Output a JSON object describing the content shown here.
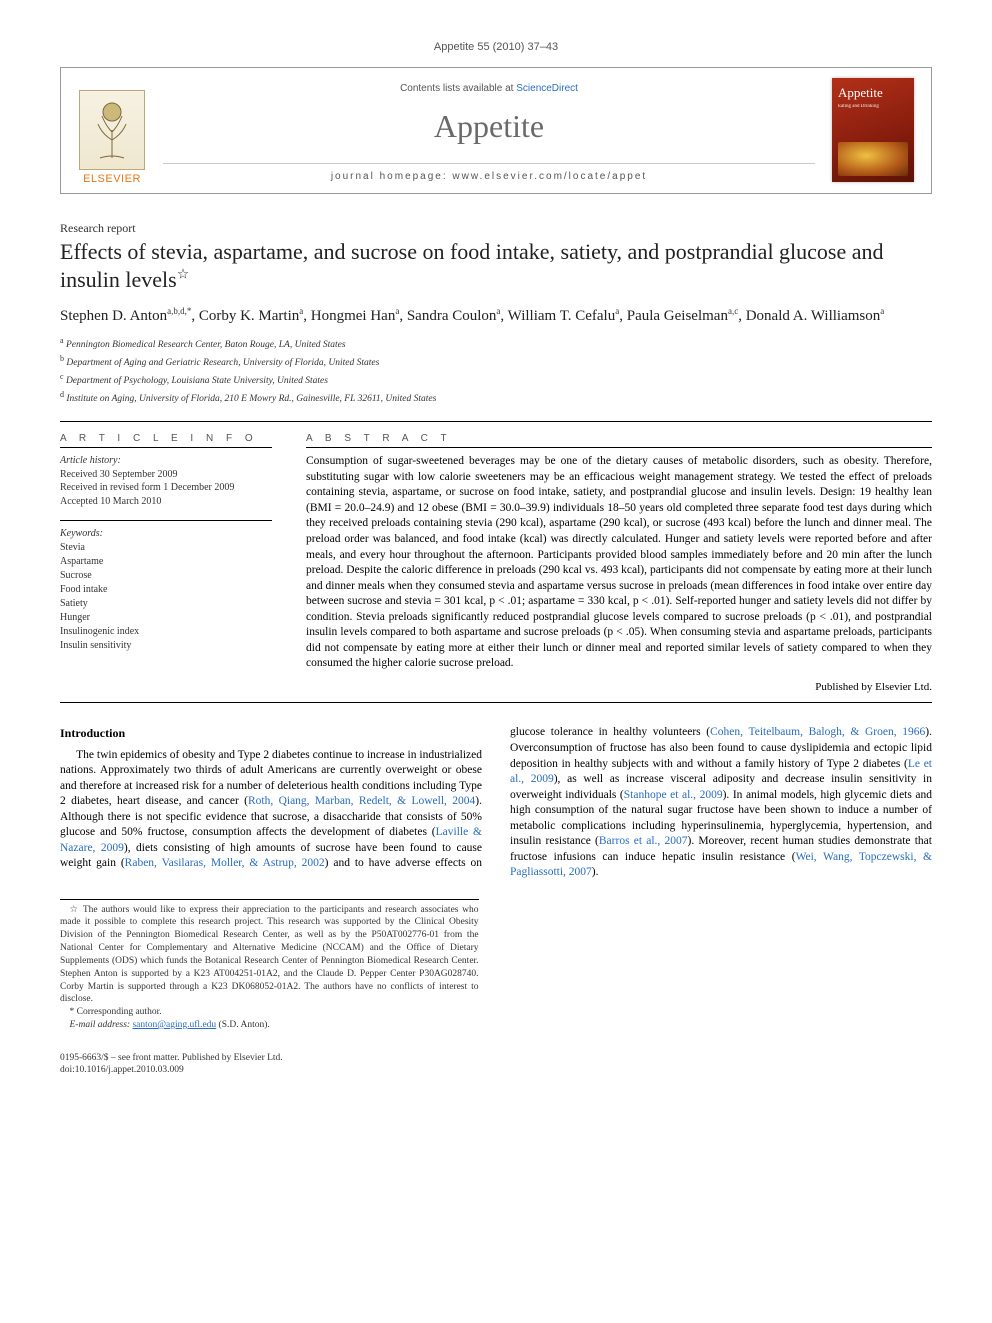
{
  "runningHead": "Appetite 55 (2010) 37–43",
  "masthead": {
    "contentsPrefix": "Contents lists available at ",
    "contentsLink": "ScienceDirect",
    "journal": "Appetite",
    "homepageLabel": "journal homepage: www.elsevier.com/locate/appet",
    "publisher": "ELSEVIER",
    "coverTitle": "Appetite",
    "coverSub": "Eating and Drinking"
  },
  "docType": "Research report",
  "title": "Effects of stevia, aspartame, and sucrose on food intake, satiety, and postprandial glucose and insulin levels",
  "titleNoteMark": "☆",
  "authors": [
    {
      "name": "Stephen D. Anton",
      "marks": "a,b,d,*"
    },
    {
      "name": "Corby K. Martin",
      "marks": "a"
    },
    {
      "name": "Hongmei Han",
      "marks": "a"
    },
    {
      "name": "Sandra Coulon",
      "marks": "a"
    },
    {
      "name": "William T. Cefalu",
      "marks": "a"
    },
    {
      "name": "Paula Geiselman",
      "marks": "a,c"
    },
    {
      "name": "Donald A. Williamson",
      "marks": "a"
    }
  ],
  "affiliations": [
    {
      "mark": "a",
      "text": "Pennington Biomedical Research Center, Baton Rouge, LA, United States"
    },
    {
      "mark": "b",
      "text": "Department of Aging and Geriatric Research, University of Florida, United States"
    },
    {
      "mark": "c",
      "text": "Department of Psychology, Louisiana State University, United States"
    },
    {
      "mark": "d",
      "text": "Institute on Aging, University of Florida, 210 E Mowry Rd., Gainesville, FL 32611, United States"
    }
  ],
  "articleInfo": {
    "heading": "A R T I C L E   I N F O",
    "historyLabel": "Article history:",
    "history": [
      "Received 30 September 2009",
      "Received in revised form 1 December 2009",
      "Accepted 10 March 2010"
    ],
    "keywordsLabel": "Keywords:",
    "keywords": [
      "Stevia",
      "Aspartame",
      "Sucrose",
      "Food intake",
      "Satiety",
      "Hunger",
      "Insulinogenic index",
      "Insulin sensitivity"
    ]
  },
  "abstract": {
    "heading": "A B S T R A C T",
    "text": "Consumption of sugar-sweetened beverages may be one of the dietary causes of metabolic disorders, such as obesity. Therefore, substituting sugar with low calorie sweeteners may be an efficacious weight management strategy. We tested the effect of preloads containing stevia, aspartame, or sucrose on food intake, satiety, and postprandial glucose and insulin levels. Design: 19 healthy lean (BMI = 20.0–24.9) and 12 obese (BMI = 30.0–39.9) individuals 18–50 years old completed three separate food test days during which they received preloads containing stevia (290 kcal), aspartame (290 kcal), or sucrose (493 kcal) before the lunch and dinner meal. The preload order was balanced, and food intake (kcal) was directly calculated. Hunger and satiety levels were reported before and after meals, and every hour throughout the afternoon. Participants provided blood samples immediately before and 20 min after the lunch preload. Despite the caloric difference in preloads (290 kcal vs. 493 kcal), participants did not compensate by eating more at their lunch and dinner meals when they consumed stevia and aspartame versus sucrose in preloads (mean differences in food intake over entire day between sucrose and stevia = 301 kcal, p < .01; aspartame = 330 kcal, p < .01). Self-reported hunger and satiety levels did not differ by condition. Stevia preloads significantly reduced postprandial glucose levels compared to sucrose preloads (p < .01), and postprandial insulin levels compared to both aspartame and sucrose preloads (p < .05). When consuming stevia and aspartame preloads, participants did not compensate by eating more at either their lunch or dinner meal and reported similar levels of satiety compared to when they consumed the higher calorie sucrose preload.",
    "publisher": "Published by Elsevier Ltd."
  },
  "intro": {
    "heading": "Introduction",
    "para1_a": "The twin epidemics of obesity and Type 2 diabetes continue to increase in industrialized nations. Approximately two thirds of adult Americans are currently overweight or obese and therefore at increased risk for a number of deleterious health conditions including Type 2 diabetes, heart disease, and cancer (",
    "cite1": "Roth, Qiang, Marban, Redelt, & Lowell, 2004",
    "para1_b": "). Although there is not specific evidence that sucrose, a disaccharide that consists of 50% glucose and 50% fructose, consumption affects the development of diabetes (",
    "cite2": "Laville & Nazare, 2009",
    "para1_c": "), diets consisting of high amounts of sucrose have been found to cause weight gain (",
    "cite3": "Raben, Vasilaras, Moller, & Astrup, 2002",
    "para1_d": ") and to have adverse effects on glucose tolerance in healthy volunteers (",
    "cite4": "Cohen, Teitelbaum, Balogh, & Groen, 1966",
    "para1_e": "). Overconsumption of fructose has also been found to cause dyslipidemia and ectopic lipid deposition in healthy subjects with and without a family history of Type 2 diabetes (",
    "cite5": "Le et al., 2009",
    "para1_f": "), as well as increase visceral adiposity and decrease insulin sensitivity in overweight individuals (",
    "cite6": "Stanhope et al., 2009",
    "para1_g": "). In animal models, high glycemic diets and high consumption of the natural sugar fructose have been shown to induce a number of metabolic complications including hyperinsulinemia, hyperglycemia, hypertension, and insulin resistance (",
    "cite7": "Barros et al., 2007",
    "para1_h": "). Moreover, recent human studies demonstrate that fructose infusions can induce hepatic insulin resistance (",
    "cite8": "Wei, Wang, Topczewski, & Pagliassotti, 2007",
    "para1_i": ")."
  },
  "footnotes": {
    "starNote": "☆ The authors would like to express their appreciation to the participants and research associates who made it possible to complete this research project. This research was supported by the Clinical Obesity Division of the Pennington Biomedical Research Center, as well as by the P50AT002776-01 from the National Center for Complementary and Alternative Medicine (NCCAM) and the Office of Dietary Supplements (ODS) which funds the Botanical Research Center of Pennington Biomedical Research Center. Stephen Anton is supported by a K23 AT004251-01A2, and the Claude D. Pepper Center P30AG028740. Corby Martin is supported through a K23 DK068052-01A2. The authors have no conflicts of interest to disclose.",
    "corresponding": "* Corresponding author.",
    "emailLabel": "E-mail address: ",
    "email": "santon@aging.ufl.edu",
    "emailSuffix": " (S.D. Anton)."
  },
  "footer": {
    "line1": "0195-6663/$ – see front matter. Published by Elsevier Ltd.",
    "line2": "doi:10.1016/j.appet.2010.03.009"
  },
  "colors": {
    "link": "#2a6cc0",
    "elsevierOrange": "#e67817",
    "coverRed": "#8a1e0e"
  }
}
